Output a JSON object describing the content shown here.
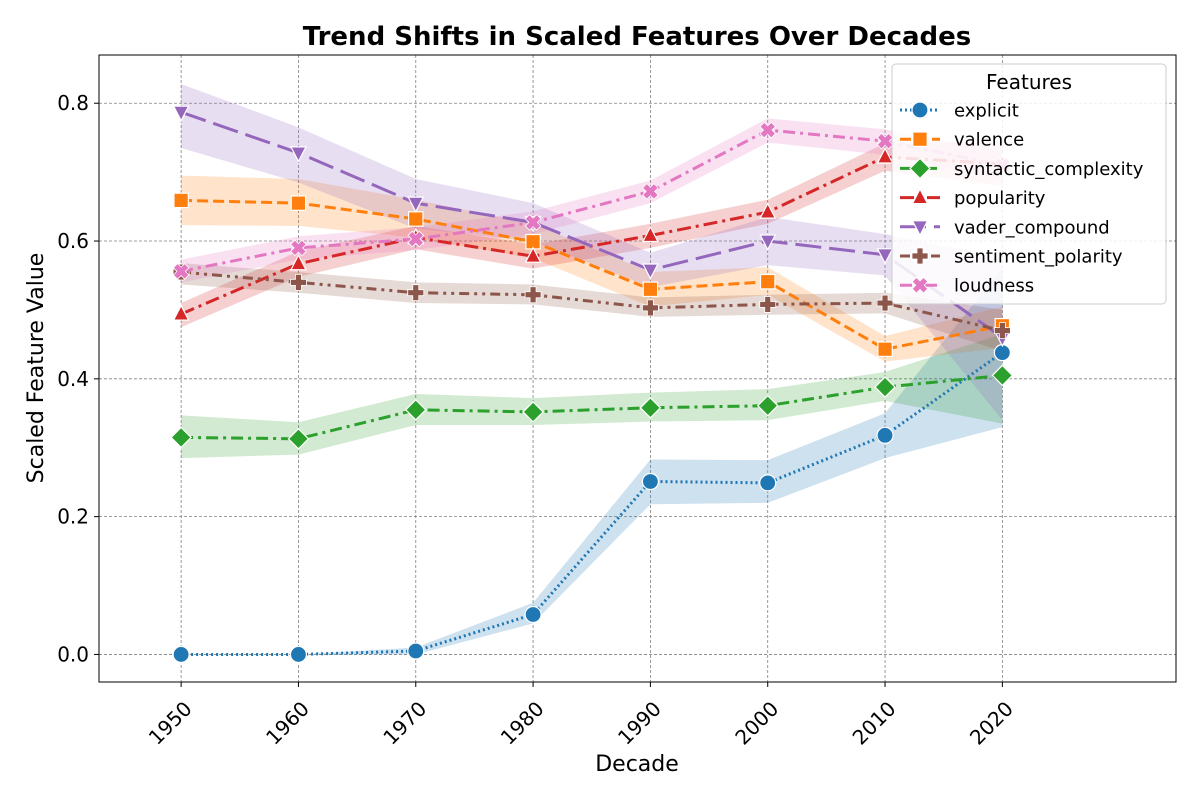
{
  "chart_data": {
    "type": "line",
    "title": "Trend Shifts in Scaled Features Over Decades",
    "xlabel": "Decade",
    "ylabel": "Scaled Feature Value",
    "x": [
      1950,
      1960,
      1970,
      1980,
      1990,
      2000,
      2010,
      2020
    ],
    "x_tick_labels": [
      "1950",
      "1960",
      "1970",
      "1980",
      "1990",
      "2000",
      "2010",
      "2020"
    ],
    "xlim": [
      1943,
      2034.8
    ],
    "ylim": [
      -0.04,
      0.87
    ],
    "y_ticks": [
      0.0,
      0.2,
      0.4,
      0.6,
      0.8
    ],
    "y_tick_labels": [
      "0.0",
      "0.2",
      "0.4",
      "0.6",
      "0.8"
    ],
    "grid": true,
    "legend": {
      "title": "Features",
      "placement": "top-right"
    },
    "series": [
      {
        "name": "explicit",
        "color": "#1f77b4",
        "marker": "circle",
        "dash": "dotted",
        "values": [
          0.0,
          0.0,
          0.005,
          0.058,
          0.251,
          0.249,
          0.318,
          0.438
        ],
        "ci_lower": [
          0.0,
          0.0,
          0.0,
          0.045,
          0.218,
          0.22,
          0.285,
          0.33
        ],
        "ci_upper": [
          0.0,
          0.0,
          0.01,
          0.075,
          0.283,
          0.282,
          0.35,
          0.56
        ]
      },
      {
        "name": "valence",
        "color": "#ff7f0e",
        "marker": "square",
        "dash": "dashed",
        "values": [
          0.659,
          0.655,
          0.632,
          0.599,
          0.53,
          0.541,
          0.443,
          0.477
        ],
        "ci_lower": [
          0.623,
          0.622,
          0.605,
          0.575,
          0.505,
          0.522,
          0.425,
          0.445
        ],
        "ci_upper": [
          0.695,
          0.69,
          0.66,
          0.625,
          0.555,
          0.562,
          0.462,
          0.505
        ]
      },
      {
        "name": "syntactic_complexity",
        "color": "#2ca02c",
        "marker": "diamond",
        "dash": "dashdot",
        "values": [
          0.315,
          0.313,
          0.355,
          0.352,
          0.358,
          0.361,
          0.388,
          0.405
        ],
        "ci_lower": [
          0.285,
          0.29,
          0.333,
          0.333,
          0.338,
          0.34,
          0.368,
          0.335
        ],
        "ci_upper": [
          0.347,
          0.337,
          0.378,
          0.372,
          0.38,
          0.385,
          0.41,
          0.465
        ]
      },
      {
        "name": "popularity",
        "color": "#d62728",
        "marker": "triangle-up",
        "dash": "longdashdot",
        "values": [
          0.494,
          0.567,
          0.605,
          0.578,
          0.608,
          0.642,
          0.722,
          0.712
        ],
        "ci_lower": [
          0.475,
          0.548,
          0.588,
          0.56,
          0.59,
          0.625,
          0.702,
          0.68
        ],
        "ci_upper": [
          0.51,
          0.585,
          0.622,
          0.595,
          0.625,
          0.66,
          0.742,
          0.745
        ]
      },
      {
        "name": "vader_compound",
        "color": "#9467bd",
        "marker": "triangle-down",
        "dash": "longdash",
        "values": [
          0.787,
          0.728,
          0.655,
          0.627,
          0.558,
          0.6,
          0.58,
          0.46
        ],
        "ci_lower": [
          0.735,
          0.685,
          0.618,
          0.6,
          0.533,
          0.565,
          0.55,
          0.34
        ],
        "ci_upper": [
          0.828,
          0.765,
          0.69,
          0.655,
          0.583,
          0.635,
          0.61,
          0.575
        ]
      },
      {
        "name": "sentiment_polarity",
        "color": "#8c564b",
        "marker": "plus",
        "dash": "dashdotdot",
        "values": [
          0.555,
          0.54,
          0.525,
          0.522,
          0.503,
          0.508,
          0.51,
          0.47
        ],
        "ci_lower": [
          0.537,
          0.525,
          0.51,
          0.508,
          0.49,
          0.493,
          0.495,
          0.44
        ],
        "ci_upper": [
          0.568,
          0.555,
          0.54,
          0.537,
          0.518,
          0.522,
          0.525,
          0.5
        ]
      },
      {
        "name": "loudness",
        "color": "#e377c2",
        "marker": "x",
        "dash": "dashdot",
        "values": [
          0.556,
          0.59,
          0.603,
          0.627,
          0.672,
          0.761,
          0.745,
          0.71
        ],
        "ci_lower": [
          0.54,
          0.573,
          0.587,
          0.61,
          0.655,
          0.743,
          0.725,
          0.69
        ],
        "ci_upper": [
          0.573,
          0.607,
          0.62,
          0.643,
          0.688,
          0.778,
          0.762,
          0.73
        ]
      }
    ]
  }
}
